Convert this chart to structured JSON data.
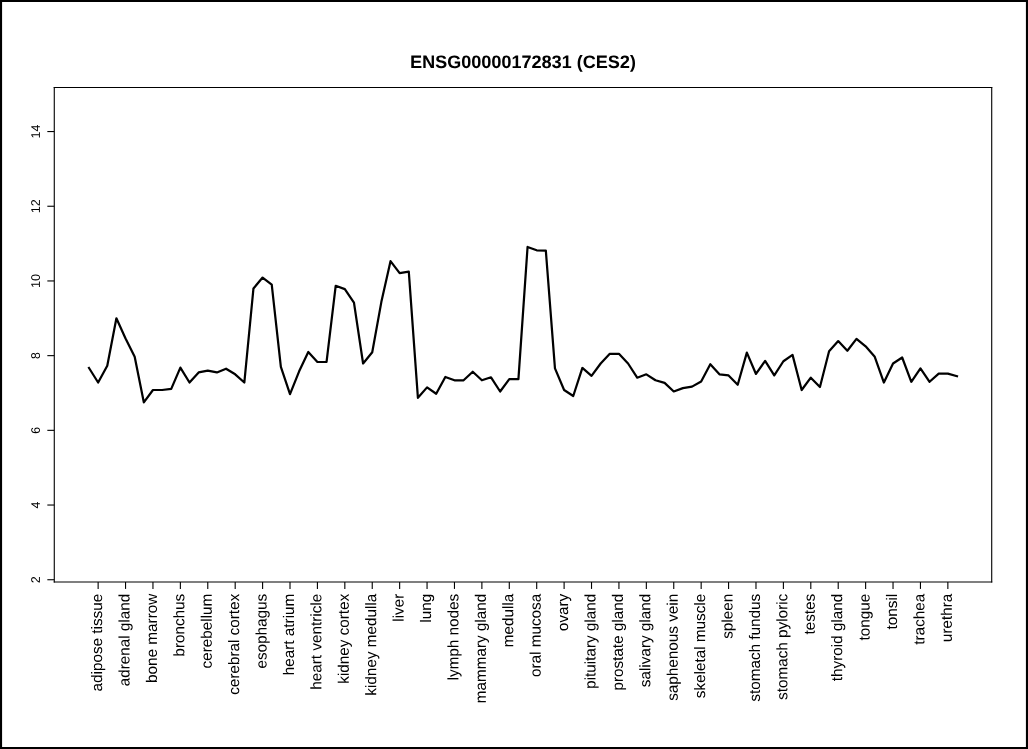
{
  "chart_data": {
    "type": "line",
    "title": "ENSG00000172831 (CES2)",
    "categories": [
      null,
      "adipose tissue",
      null,
      null,
      "adrenal gland",
      null,
      null,
      "bone marrow",
      null,
      null,
      "bronchus",
      null,
      null,
      "cerebellum",
      null,
      null,
      "cerebral cortex",
      null,
      null,
      "esophagus",
      null,
      null,
      "heart atrium",
      null,
      null,
      "heart ventricle",
      null,
      null,
      "kidney cortex",
      null,
      null,
      "kidney medulla",
      null,
      null,
      "liver",
      null,
      null,
      "lung",
      null,
      null,
      "lymph nodes",
      null,
      null,
      "mammary gland",
      null,
      null,
      "medulla",
      null,
      null,
      "oral mucosa",
      null,
      null,
      "ovary",
      null,
      null,
      "pituitary gland",
      null,
      null,
      "prostate gland",
      null,
      null,
      "salivary gland",
      null,
      null,
      "saphenous vein",
      null,
      null,
      "skeletal muscle",
      null,
      null,
      "spleen",
      null,
      null,
      "stomach fundus",
      null,
      null,
      "stomach pyloric",
      null,
      null,
      "testes",
      null,
      null,
      "thyroid gland",
      null,
      null,
      "tongue",
      null,
      null,
      "tonsil",
      null,
      null,
      "trachea",
      null,
      null,
      "urethra",
      null
    ],
    "series": [
      {
        "color": "#000000",
        "values": [
          7.67,
          7.28,
          7.73,
          9.0,
          8.46,
          7.97,
          6.75,
          7.08,
          7.08,
          7.11,
          7.68,
          7.28,
          7.55,
          7.6,
          7.55,
          7.65,
          7.5,
          7.28,
          9.8,
          10.09,
          9.9,
          7.7,
          6.97,
          7.58,
          8.1,
          7.83,
          7.83,
          9.87,
          9.78,
          9.42,
          7.79,
          8.09,
          9.44,
          10.53,
          10.21,
          10.25,
          6.87,
          7.15,
          6.98,
          7.43,
          7.34,
          7.34,
          7.57,
          7.34,
          7.42,
          7.04,
          7.37,
          7.37,
          10.91,
          10.82,
          10.81,
          7.66,
          7.08,
          6.92,
          7.67,
          7.46,
          7.79,
          8.05,
          8.05,
          7.79,
          7.41,
          7.5,
          7.34,
          7.27,
          7.04,
          7.13,
          7.17,
          7.31,
          7.77,
          7.5,
          7.47,
          7.22,
          8.08,
          7.51,
          7.86,
          7.47,
          7.85,
          8.02,
          7.08,
          7.41,
          7.16,
          8.12,
          8.39,
          8.13,
          8.45,
          8.25,
          7.97,
          7.28,
          7.79,
          7.95,
          7.3,
          7.66,
          7.3,
          7.52,
          7.52,
          7.45
        ]
      }
    ],
    "ylim": [
      1.94,
      15.18
    ],
    "yticks": [
      2,
      4,
      6,
      8,
      10,
      12,
      14
    ],
    "grid": false,
    "marker": "none",
    "line_style": "solid"
  }
}
